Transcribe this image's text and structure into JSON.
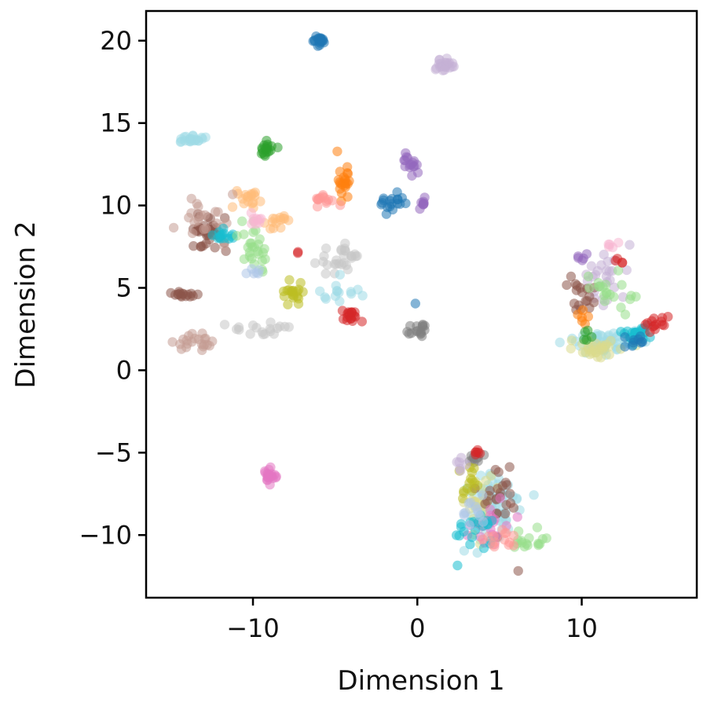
{
  "chart_data": {
    "type": "scatter",
    "title": "",
    "xlabel": "Dimension 1",
    "ylabel": "Dimension 2",
    "xlim": [
      -16.5,
      17.0
    ],
    "ylim": [
      -13.8,
      21.8
    ],
    "xticks": [
      -10,
      0,
      10
    ],
    "xtick_labels": [
      "−10",
      "0",
      "10"
    ],
    "yticks": [
      -10,
      -5,
      0,
      5,
      10,
      15,
      20
    ],
    "ytick_labels": [
      "−10",
      "−5",
      "0",
      "5",
      "10",
      "15",
      "20"
    ],
    "grid": false,
    "legend": "none",
    "point_alpha": 0.55,
    "clusters": [
      {
        "color": "#1f77b4",
        "center": [
          -6.0,
          20.0
        ],
        "spread": [
          0.35,
          0.2
        ],
        "count": 24
      },
      {
        "color": "#c5b0d5",
        "center": [
          1.6,
          18.5
        ],
        "spread": [
          0.55,
          0.3
        ],
        "count": 22
      },
      {
        "color": "#9edae5",
        "center": [
          -13.7,
          14.0
        ],
        "spread": [
          0.8,
          0.2
        ],
        "count": 22
      },
      {
        "color": "#2ca02c",
        "center": [
          -9.2,
          13.5
        ],
        "spread": [
          0.45,
          0.5
        ],
        "count": 18
      },
      {
        "color": "#ff7f0e",
        "center": [
          -4.4,
          11.6
        ],
        "spread": [
          0.45,
          0.9
        ],
        "count": 22
      },
      {
        "color": "#9467bd",
        "center": [
          -0.6,
          12.5
        ],
        "spread": [
          0.5,
          0.5
        ],
        "count": 16
      },
      {
        "color": "#1f77b4",
        "center": [
          -1.4,
          10.2
        ],
        "spread": [
          0.8,
          0.45
        ],
        "count": 18
      },
      {
        "color": "#9467bd",
        "center": [
          0.3,
          10.1
        ],
        "spread": [
          0.4,
          0.3
        ],
        "count": 8
      },
      {
        "color": "#ff9896",
        "center": [
          -5.7,
          10.3
        ],
        "spread": [
          0.7,
          0.4
        ],
        "count": 14
      },
      {
        "color": "#ffbb78",
        "center": [
          -10.3,
          10.4
        ],
        "spread": [
          0.8,
          0.5
        ],
        "count": 18
      },
      {
        "color": "#ffbb78",
        "center": [
          -8.4,
          9.0
        ],
        "spread": [
          0.8,
          0.5
        ],
        "count": 14
      },
      {
        "color": "#8c564b",
        "center": [
          -12.8,
          8.5
        ],
        "spread": [
          1.1,
          1.1
        ],
        "count": 36
      },
      {
        "color": "#c49c94",
        "center": [
          -13.0,
          9.3
        ],
        "spread": [
          1.2,
          1.0
        ],
        "count": 20
      },
      {
        "color": "#17becf",
        "center": [
          -12.0,
          8.2
        ],
        "spread": [
          0.7,
          0.4
        ],
        "count": 14
      },
      {
        "color": "#98df8a",
        "center": [
          -9.8,
          7.5
        ],
        "spread": [
          0.8,
          1.1
        ],
        "count": 26
      },
      {
        "color": "#f7b6d2",
        "center": [
          -9.8,
          9.1
        ],
        "spread": [
          0.5,
          0.4
        ],
        "count": 10
      },
      {
        "color": "#aec7e8",
        "center": [
          -10.0,
          6.0
        ],
        "spread": [
          0.6,
          0.4
        ],
        "count": 6
      },
      {
        "color": "#d62728",
        "center": [
          -7.3,
          7.2
        ],
        "spread": [
          0.1,
          0.1
        ],
        "count": 2
      },
      {
        "color": "#bcbd22",
        "center": [
          -7.6,
          4.8
        ],
        "spread": [
          0.5,
          0.5
        ],
        "count": 20
      },
      {
        "color": "#c7c7c7",
        "center": [
          -4.7,
          6.8
        ],
        "spread": [
          1.1,
          0.7
        ],
        "count": 28
      },
      {
        "color": "#9edae5",
        "center": [
          -4.8,
          4.8
        ],
        "spread": [
          0.9,
          0.6
        ],
        "count": 14
      },
      {
        "color": "#d62728",
        "center": [
          -4.1,
          3.3
        ],
        "spread": [
          0.5,
          0.35
        ],
        "count": 18
      },
      {
        "color": "#7f7f7f",
        "center": [
          0.1,
          2.5
        ],
        "spread": [
          0.5,
          0.45
        ],
        "count": 16
      },
      {
        "color": "#1f77b4",
        "center": [
          -0.1,
          4.0
        ],
        "spread": [
          0.1,
          0.1
        ],
        "count": 1
      },
      {
        "color": "#8c564b",
        "center": [
          -14.3,
          4.6
        ],
        "spread": [
          0.7,
          0.2
        ],
        "count": 16
      },
      {
        "color": "#c49c94",
        "center": [
          -13.5,
          1.8
        ],
        "spread": [
          1.0,
          0.5
        ],
        "count": 22
      },
      {
        "color": "#c7c7c7",
        "center": [
          -9.7,
          2.5
        ],
        "spread": [
          1.2,
          0.45
        ],
        "count": 18
      },
      {
        "color": "#e377c2",
        "center": [
          -9.0,
          -6.4
        ],
        "spread": [
          0.4,
          0.35
        ],
        "count": 20
      },
      {
        "color": "#9edae5",
        "center": [
          11.5,
          1.6
        ],
        "spread": [
          1.9,
          0.5
        ],
        "count": 60
      },
      {
        "color": "#dbdb8d",
        "center": [
          11.2,
          1.3
        ],
        "spread": [
          1.5,
          0.5
        ],
        "count": 30
      },
      {
        "color": "#17becf",
        "center": [
          13.3,
          2.1
        ],
        "spread": [
          0.9,
          0.6
        ],
        "count": 22
      },
      {
        "color": "#1f77b4",
        "center": [
          13.4,
          1.7
        ],
        "spread": [
          0.5,
          0.4
        ],
        "count": 10
      },
      {
        "color": "#d62728",
        "center": [
          14.4,
          2.8
        ],
        "spread": [
          0.7,
          0.5
        ],
        "count": 14
      },
      {
        "color": "#c5b0d5",
        "center": [
          11.6,
          5.8
        ],
        "spread": [
          1.0,
          1.3
        ],
        "count": 26
      },
      {
        "color": "#8c564b",
        "center": [
          9.9,
          4.4
        ],
        "spread": [
          0.7,
          1.0
        ],
        "count": 18
      },
      {
        "color": "#98df8a",
        "center": [
          11.6,
          4.6
        ],
        "spread": [
          1.1,
          1.3
        ],
        "count": 20
      },
      {
        "color": "#ff7f0e",
        "center": [
          10.1,
          3.3
        ],
        "spread": [
          0.5,
          0.5
        ],
        "count": 6
      },
      {
        "color": "#9467bd",
        "center": [
          10.1,
          6.9
        ],
        "spread": [
          0.4,
          0.2
        ],
        "count": 5
      },
      {
        "color": "#d62728",
        "center": [
          12.3,
          6.7
        ],
        "spread": [
          0.3,
          0.2
        ],
        "count": 4
      },
      {
        "color": "#f7b6d2",
        "center": [
          11.8,
          7.6
        ],
        "spread": [
          0.4,
          0.2
        ],
        "count": 5
      },
      {
        "color": "#2ca02c",
        "center": [
          10.3,
          2.2
        ],
        "spread": [
          0.4,
          0.3
        ],
        "count": 5
      },
      {
        "color": "#9edae5",
        "center": [
          4.6,
          -8.4
        ],
        "spread": [
          1.3,
          1.6
        ],
        "count": 70
      },
      {
        "color": "#dbdb8d",
        "center": [
          3.8,
          -8.0
        ],
        "spread": [
          0.9,
          1.5
        ],
        "count": 30
      },
      {
        "color": "#7f7f7f",
        "center": [
          3.4,
          -5.4
        ],
        "spread": [
          0.4,
          0.3
        ],
        "count": 10
      },
      {
        "color": "#d62728",
        "center": [
          3.6,
          -5.0
        ],
        "spread": [
          0.3,
          0.2
        ],
        "count": 6
      },
      {
        "color": "#8c564b",
        "center": [
          4.8,
          -8.0
        ],
        "spread": [
          1.2,
          1.7
        ],
        "count": 24
      },
      {
        "color": "#e377c2",
        "center": [
          4.6,
          -9.3
        ],
        "spread": [
          1.0,
          1.1
        ],
        "count": 20
      },
      {
        "color": "#17becf",
        "center": [
          3.6,
          -9.4
        ],
        "spread": [
          1.0,
          1.2
        ],
        "count": 20
      },
      {
        "color": "#98df8a",
        "center": [
          6.8,
          -10.4
        ],
        "spread": [
          1.0,
          0.5
        ],
        "count": 16
      },
      {
        "color": "#bcbd22",
        "center": [
          3.2,
          -6.9
        ],
        "spread": [
          0.5,
          0.8
        ],
        "count": 14
      },
      {
        "color": "#c5b0d5",
        "center": [
          2.5,
          -5.7
        ],
        "spread": [
          0.3,
          0.6
        ],
        "count": 6
      },
      {
        "color": "#aec7e8",
        "center": [
          3.6,
          -8.7
        ],
        "spread": [
          0.8,
          0.9
        ],
        "count": 12
      },
      {
        "color": "#ff9896",
        "center": [
          4.9,
          -10.3
        ],
        "spread": [
          0.9,
          0.6
        ],
        "count": 14
      },
      {
        "color": "#17becf",
        "center": [
          2.4,
          -11.8
        ],
        "spread": [
          0.1,
          0.1
        ],
        "count": 1
      },
      {
        "color": "#8c564b",
        "center": [
          6.2,
          -12.2
        ],
        "spread": [
          0.1,
          0.1
        ],
        "count": 1
      }
    ]
  }
}
